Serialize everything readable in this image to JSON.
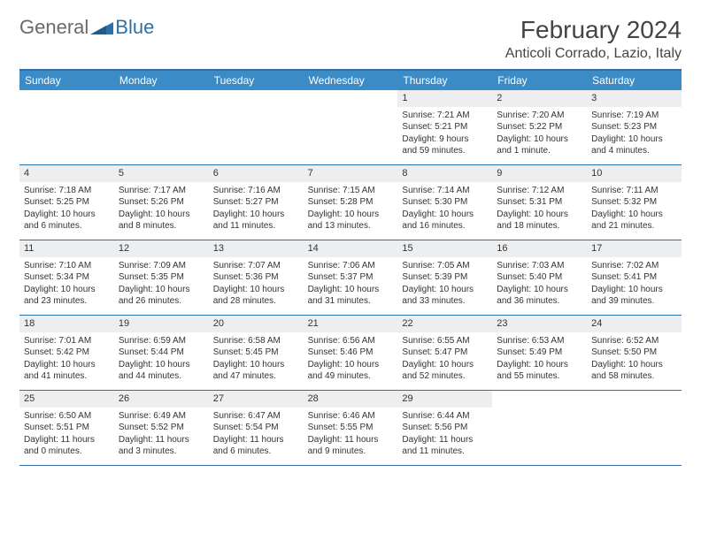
{
  "logo": {
    "general": "General",
    "blue": "Blue"
  },
  "title": "February 2024",
  "location": "Anticoli Corrado, Lazio, Italy",
  "colors": {
    "header_bg": "#3b8bc6",
    "border": "#2f6fa8",
    "daynum_bg": "#eceef0",
    "text": "#333333",
    "logo_gray": "#6a6a6a",
    "logo_blue": "#2f6fa8"
  },
  "day_names": [
    "Sunday",
    "Monday",
    "Tuesday",
    "Wednesday",
    "Thursday",
    "Friday",
    "Saturday"
  ],
  "weeks": [
    [
      null,
      null,
      null,
      null,
      {
        "d": "1",
        "sr": "Sunrise: 7:21 AM",
        "ss": "Sunset: 5:21 PM",
        "dl1": "Daylight: 9 hours",
        "dl2": "and 59 minutes."
      },
      {
        "d": "2",
        "sr": "Sunrise: 7:20 AM",
        "ss": "Sunset: 5:22 PM",
        "dl1": "Daylight: 10 hours",
        "dl2": "and 1 minute."
      },
      {
        "d": "3",
        "sr": "Sunrise: 7:19 AM",
        "ss": "Sunset: 5:23 PM",
        "dl1": "Daylight: 10 hours",
        "dl2": "and 4 minutes."
      }
    ],
    [
      {
        "d": "4",
        "sr": "Sunrise: 7:18 AM",
        "ss": "Sunset: 5:25 PM",
        "dl1": "Daylight: 10 hours",
        "dl2": "and 6 minutes."
      },
      {
        "d": "5",
        "sr": "Sunrise: 7:17 AM",
        "ss": "Sunset: 5:26 PM",
        "dl1": "Daylight: 10 hours",
        "dl2": "and 8 minutes."
      },
      {
        "d": "6",
        "sr": "Sunrise: 7:16 AM",
        "ss": "Sunset: 5:27 PM",
        "dl1": "Daylight: 10 hours",
        "dl2": "and 11 minutes."
      },
      {
        "d": "7",
        "sr": "Sunrise: 7:15 AM",
        "ss": "Sunset: 5:28 PM",
        "dl1": "Daylight: 10 hours",
        "dl2": "and 13 minutes."
      },
      {
        "d": "8",
        "sr": "Sunrise: 7:14 AM",
        "ss": "Sunset: 5:30 PM",
        "dl1": "Daylight: 10 hours",
        "dl2": "and 16 minutes."
      },
      {
        "d": "9",
        "sr": "Sunrise: 7:12 AM",
        "ss": "Sunset: 5:31 PM",
        "dl1": "Daylight: 10 hours",
        "dl2": "and 18 minutes."
      },
      {
        "d": "10",
        "sr": "Sunrise: 7:11 AM",
        "ss": "Sunset: 5:32 PM",
        "dl1": "Daylight: 10 hours",
        "dl2": "and 21 minutes."
      }
    ],
    [
      {
        "d": "11",
        "sr": "Sunrise: 7:10 AM",
        "ss": "Sunset: 5:34 PM",
        "dl1": "Daylight: 10 hours",
        "dl2": "and 23 minutes."
      },
      {
        "d": "12",
        "sr": "Sunrise: 7:09 AM",
        "ss": "Sunset: 5:35 PM",
        "dl1": "Daylight: 10 hours",
        "dl2": "and 26 minutes."
      },
      {
        "d": "13",
        "sr": "Sunrise: 7:07 AM",
        "ss": "Sunset: 5:36 PM",
        "dl1": "Daylight: 10 hours",
        "dl2": "and 28 minutes."
      },
      {
        "d": "14",
        "sr": "Sunrise: 7:06 AM",
        "ss": "Sunset: 5:37 PM",
        "dl1": "Daylight: 10 hours",
        "dl2": "and 31 minutes."
      },
      {
        "d": "15",
        "sr": "Sunrise: 7:05 AM",
        "ss": "Sunset: 5:39 PM",
        "dl1": "Daylight: 10 hours",
        "dl2": "and 33 minutes."
      },
      {
        "d": "16",
        "sr": "Sunrise: 7:03 AM",
        "ss": "Sunset: 5:40 PM",
        "dl1": "Daylight: 10 hours",
        "dl2": "and 36 minutes."
      },
      {
        "d": "17",
        "sr": "Sunrise: 7:02 AM",
        "ss": "Sunset: 5:41 PM",
        "dl1": "Daylight: 10 hours",
        "dl2": "and 39 minutes."
      }
    ],
    [
      {
        "d": "18",
        "sr": "Sunrise: 7:01 AM",
        "ss": "Sunset: 5:42 PM",
        "dl1": "Daylight: 10 hours",
        "dl2": "and 41 minutes."
      },
      {
        "d": "19",
        "sr": "Sunrise: 6:59 AM",
        "ss": "Sunset: 5:44 PM",
        "dl1": "Daylight: 10 hours",
        "dl2": "and 44 minutes."
      },
      {
        "d": "20",
        "sr": "Sunrise: 6:58 AM",
        "ss": "Sunset: 5:45 PM",
        "dl1": "Daylight: 10 hours",
        "dl2": "and 47 minutes."
      },
      {
        "d": "21",
        "sr": "Sunrise: 6:56 AM",
        "ss": "Sunset: 5:46 PM",
        "dl1": "Daylight: 10 hours",
        "dl2": "and 49 minutes."
      },
      {
        "d": "22",
        "sr": "Sunrise: 6:55 AM",
        "ss": "Sunset: 5:47 PM",
        "dl1": "Daylight: 10 hours",
        "dl2": "and 52 minutes."
      },
      {
        "d": "23",
        "sr": "Sunrise: 6:53 AM",
        "ss": "Sunset: 5:49 PM",
        "dl1": "Daylight: 10 hours",
        "dl2": "and 55 minutes."
      },
      {
        "d": "24",
        "sr": "Sunrise: 6:52 AM",
        "ss": "Sunset: 5:50 PM",
        "dl1": "Daylight: 10 hours",
        "dl2": "and 58 minutes."
      }
    ],
    [
      {
        "d": "25",
        "sr": "Sunrise: 6:50 AM",
        "ss": "Sunset: 5:51 PM",
        "dl1": "Daylight: 11 hours",
        "dl2": "and 0 minutes."
      },
      {
        "d": "26",
        "sr": "Sunrise: 6:49 AM",
        "ss": "Sunset: 5:52 PM",
        "dl1": "Daylight: 11 hours",
        "dl2": "and 3 minutes."
      },
      {
        "d": "27",
        "sr": "Sunrise: 6:47 AM",
        "ss": "Sunset: 5:54 PM",
        "dl1": "Daylight: 11 hours",
        "dl2": "and 6 minutes."
      },
      {
        "d": "28",
        "sr": "Sunrise: 6:46 AM",
        "ss": "Sunset: 5:55 PM",
        "dl1": "Daylight: 11 hours",
        "dl2": "and 9 minutes."
      },
      {
        "d": "29",
        "sr": "Sunrise: 6:44 AM",
        "ss": "Sunset: 5:56 PM",
        "dl1": "Daylight: 11 hours",
        "dl2": "and 11 minutes."
      },
      null,
      null
    ]
  ]
}
